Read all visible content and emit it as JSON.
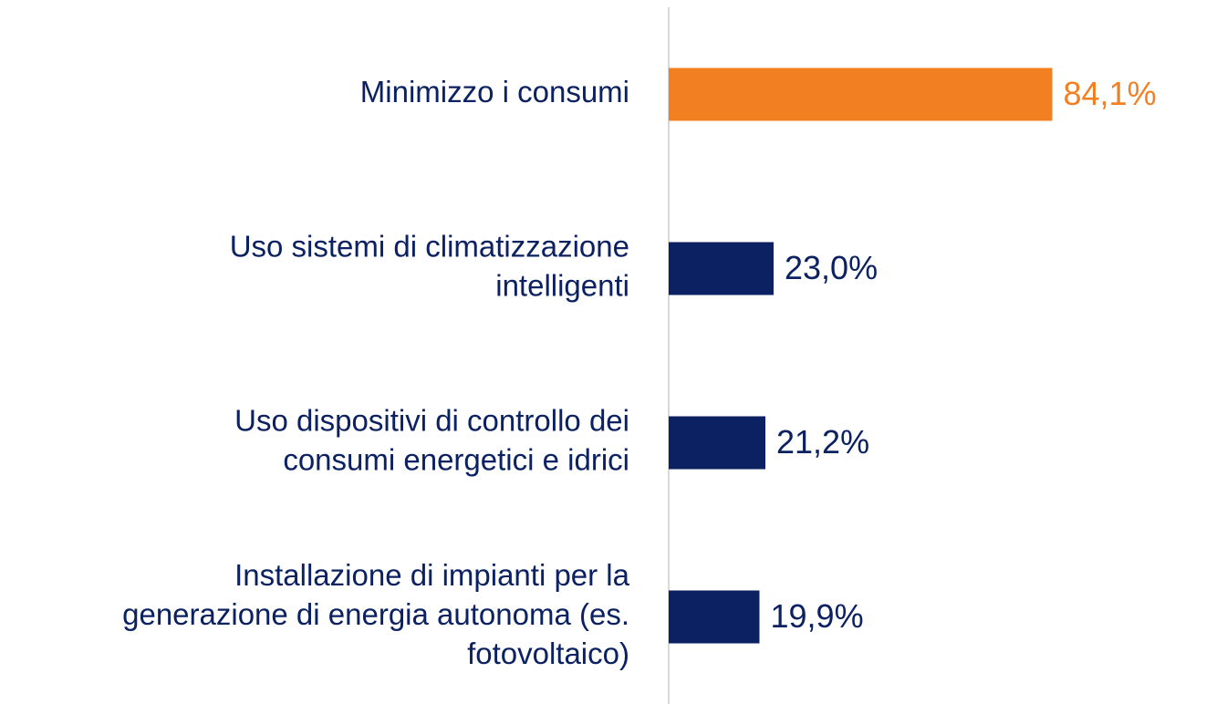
{
  "chart_data": {
    "type": "barh",
    "categories": [
      [
        "Minimizzo i consumi"
      ],
      [
        "Uso sistemi di climatizzazione",
        "intelligenti"
      ],
      [
        "Uso dispositivi di controllo dei",
        "consumi energetici e idrici"
      ],
      [
        "Installazione di impianti per la",
        "generazione di energia autonoma (es.",
        "fotovoltaico)"
      ]
    ],
    "values": [
      84.1,
      23.0,
      21.2,
      19.9
    ],
    "value_labels": [
      "84,1%",
      "23,0%",
      "21,2%",
      "19,9%"
    ],
    "colors": [
      "#f28022",
      "#0b2161",
      "#0b2161",
      "#0b2161"
    ],
    "label_color": "#0b2161",
    "xlim": [
      0,
      100
    ]
  }
}
